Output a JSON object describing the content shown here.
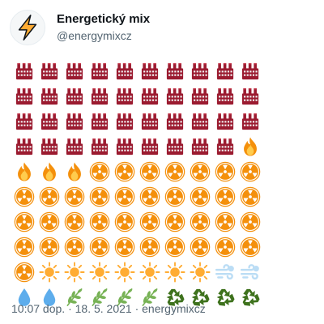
{
  "account": {
    "display_name": "Energetický mix",
    "handle": "@energymixcz",
    "avatar_icon": "high-voltage-icon"
  },
  "tweet": {
    "timestamp": "10:07 dop.",
    "date": "18. 5. 2021",
    "source": "energymixcz",
    "separator": "·"
  },
  "energy_grid": {
    "columns": 10,
    "cells": [
      "factory",
      "factory",
      "factory",
      "factory",
      "factory",
      "factory",
      "factory",
      "factory",
      "factory",
      "factory",
      "factory",
      "factory",
      "factory",
      "factory",
      "factory",
      "factory",
      "factory",
      "factory",
      "factory",
      "factory",
      "factory",
      "factory",
      "factory",
      "factory",
      "factory",
      "factory",
      "factory",
      "factory",
      "factory",
      "factory",
      "factory",
      "factory",
      "factory",
      "factory",
      "factory",
      "factory",
      "factory",
      "factory",
      "factory",
      "fire",
      "fire",
      "fire",
      "fire",
      "radioactive",
      "radioactive",
      "radioactive",
      "radioactive",
      "radioactive",
      "radioactive",
      "radioactive",
      "radioactive",
      "radioactive",
      "radioactive",
      "radioactive",
      "radioactive",
      "radioactive",
      "radioactive",
      "radioactive",
      "radioactive",
      "radioactive",
      "radioactive",
      "radioactive",
      "radioactive",
      "radioactive",
      "radioactive",
      "radioactive",
      "radioactive",
      "radioactive",
      "radioactive",
      "radioactive",
      "radioactive",
      "radioactive",
      "radioactive",
      "radioactive",
      "radioactive",
      "radioactive",
      "radioactive",
      "radioactive",
      "radioactive",
      "radioactive",
      "radioactive",
      "sun",
      "sun",
      "sun",
      "sun",
      "sun",
      "sun",
      "sun",
      "wind",
      "wind",
      "droplet",
      "droplet",
      "herb",
      "herb",
      "herb",
      "herb",
      "recycle",
      "recycle",
      "recycle",
      "recycle"
    ]
  },
  "icon_names": {
    "factory": "factory-icon",
    "fire": "fire-icon",
    "radioactive": "radioactive-icon",
    "sun": "sun-icon",
    "wind": "wind-icon",
    "droplet": "droplet-icon",
    "herb": "herb-icon",
    "recycle": "recycle-icon"
  },
  "colors": {
    "factory": "#9b1b30",
    "fire": "#f4900c",
    "radioactive": "#f4900c",
    "sun": "#ffac33",
    "wind": "#bbddf5",
    "droplet": "#5dadec",
    "herb": "#77b255",
    "recycle": "#3e721d"
  }
}
